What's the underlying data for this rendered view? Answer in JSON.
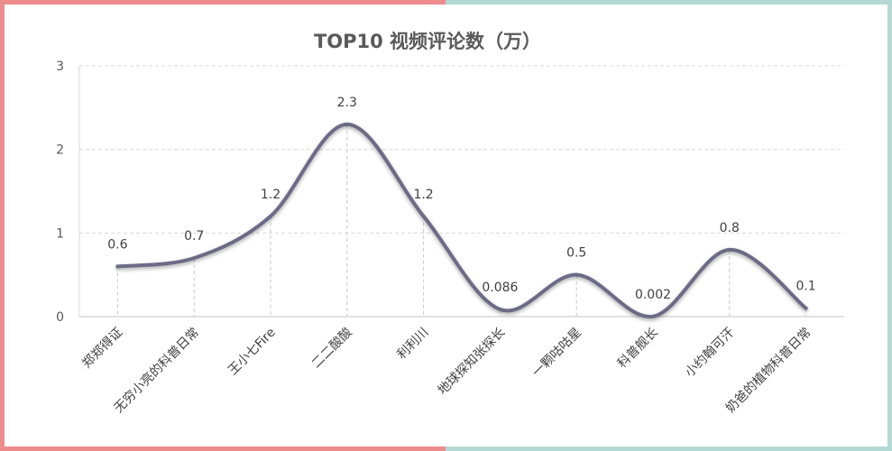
{
  "chart_data": {
    "type": "line",
    "title": "TOP10 视频评论数（万）",
    "categories": [
      "郑郑得证",
      "无穷小亮的科普日常",
      "王小七Fire",
      "二二酸酸",
      "利利川",
      "地球探知张探长",
      "一颗咕咕星",
      "科普舰长",
      "小约翰可汗",
      "奶爸的植物科普日常"
    ],
    "series": [
      {
        "values": [
          0.6,
          0.7,
          1.2,
          2.3,
          1.2,
          0.086,
          0.5,
          0.002,
          0.8,
          0.1
        ],
        "labels": [
          "0.6",
          "0.7",
          "1.2",
          "2.3",
          "1.2",
          "0.086",
          "0.5",
          "0.002",
          "0.8",
          "0.1"
        ]
      }
    ],
    "ylim": [
      0,
      3
    ],
    "yticks": [
      "0",
      "1",
      "2",
      "3"
    ],
    "xlabel": "",
    "ylabel": "",
    "grid": true,
    "smooth": true,
    "line_color": "#6d6a86",
    "frame_colors": [
      "#ec8c8c",
      "#b4d9d4"
    ]
  }
}
